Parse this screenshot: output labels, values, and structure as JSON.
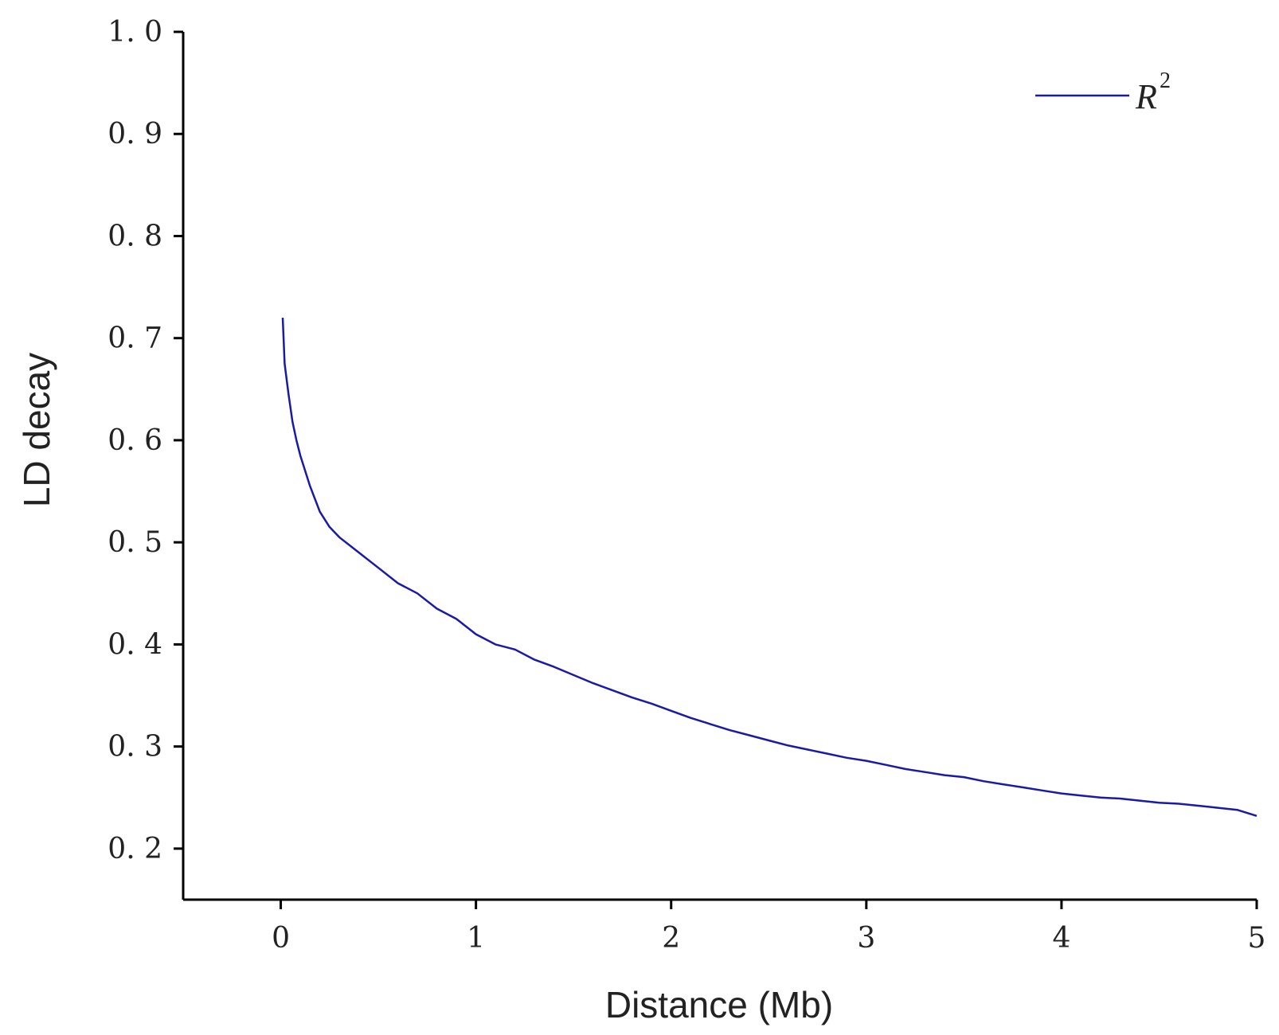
{
  "chart_data": {
    "type": "line",
    "title": "",
    "xlabel": "Distance (Mb)",
    "ylabel": "LD decay",
    "xlim": [
      -0.5,
      5
    ],
    "ylim": [
      0.15,
      1.0
    ],
    "x_ticks": [
      0,
      1,
      2,
      3,
      4,
      5
    ],
    "x_tick_labels": [
      "0",
      "1",
      "2",
      "3",
      "4",
      "5"
    ],
    "y_ticks": [
      0.2,
      0.3,
      0.4,
      0.5,
      0.6,
      0.7,
      0.8,
      0.9,
      1.0
    ],
    "y_tick_labels": [
      "0. 2",
      "0. 3",
      "0. 4",
      "0. 5",
      "0. 6",
      "0. 7",
      "0. 8",
      "0. 9",
      "1. 0"
    ],
    "grid": false,
    "legend": {
      "position": "top-right",
      "entries": [
        {
          "base": "R",
          "sup": "2"
        }
      ]
    },
    "series": [
      {
        "color": "#1a1aa8",
        "x": [
          0.01,
          0.02,
          0.04,
          0.06,
          0.08,
          0.1,
          0.15,
          0.2,
          0.25,
          0.3,
          0.4,
          0.5,
          0.6,
          0.7,
          0.8,
          0.9,
          1.0,
          1.1,
          1.2,
          1.3,
          1.4,
          1.5,
          1.6,
          1.7,
          1.8,
          1.9,
          2.0,
          2.1,
          2.2,
          2.3,
          2.4,
          2.5,
          2.6,
          2.7,
          2.8,
          2.9,
          3.0,
          3.1,
          3.2,
          3.3,
          3.4,
          3.5,
          3.6,
          3.7,
          3.8,
          3.9,
          4.0,
          4.1,
          4.2,
          4.3,
          4.4,
          4.5,
          4.6,
          4.7,
          4.8,
          4.9,
          5.0
        ],
        "y": [
          0.72,
          0.675,
          0.645,
          0.618,
          0.6,
          0.585,
          0.555,
          0.53,
          0.515,
          0.505,
          0.49,
          0.475,
          0.46,
          0.45,
          0.435,
          0.425,
          0.41,
          0.4,
          0.395,
          0.385,
          0.378,
          0.37,
          0.362,
          0.355,
          0.348,
          0.342,
          0.335,
          0.328,
          0.322,
          0.316,
          0.311,
          0.306,
          0.301,
          0.297,
          0.293,
          0.289,
          0.286,
          0.282,
          0.278,
          0.275,
          0.272,
          0.27,
          0.266,
          0.263,
          0.26,
          0.257,
          0.254,
          0.252,
          0.25,
          0.249,
          0.247,
          0.245,
          0.244,
          0.242,
          0.24,
          0.238,
          0.232
        ]
      }
    ]
  }
}
